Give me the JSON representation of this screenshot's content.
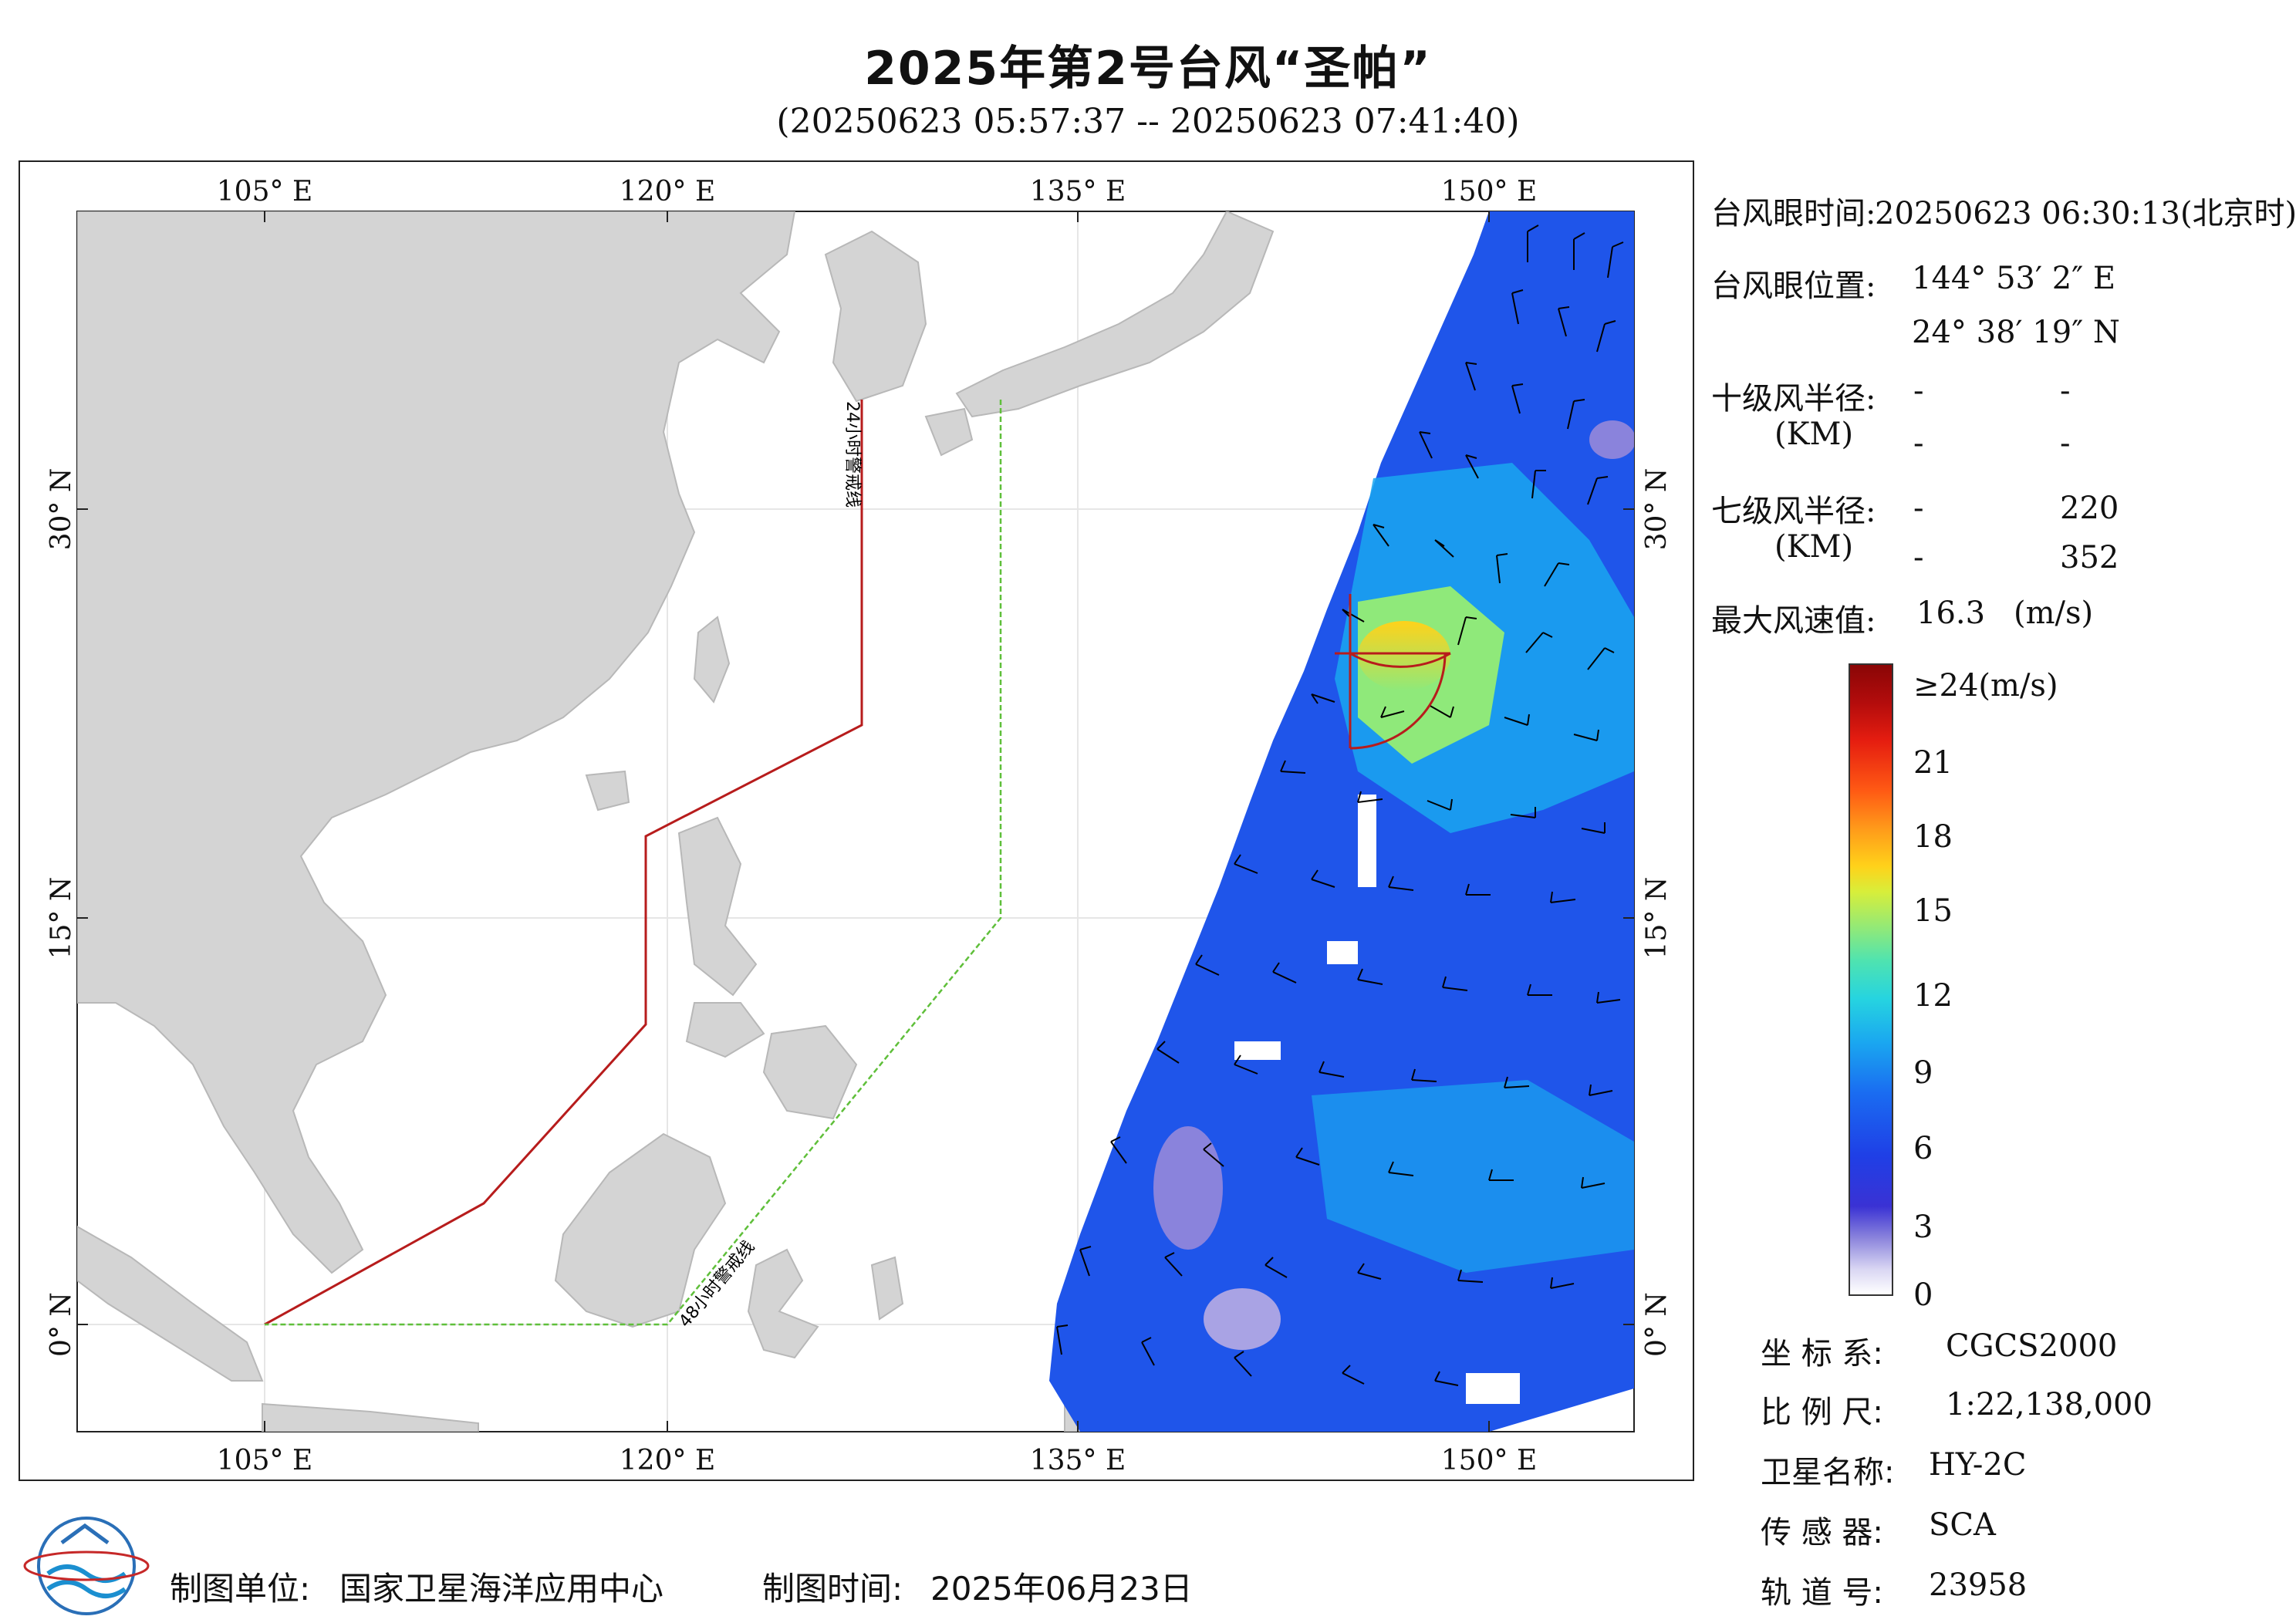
{
  "title": "2025年第2号台风“圣帕”",
  "subtitle": "(20250623 05:57:37 -- 20250623 07:41:40)",
  "map": {
    "top_lon_labels": [
      "105° E",
      "120° E",
      "135° E",
      "150° E"
    ],
    "bottom_lon_labels": [
      "105° E",
      "120° E",
      "135° E",
      "150° E"
    ],
    "left_lat_labels": [
      "30° N",
      "15° N",
      "0° N"
    ],
    "right_lat_labels": [
      "30° N",
      "15° N",
      "0° N"
    ],
    "line_24h_label": "24小时警戒线",
    "line_48h_label": "48小时警戒线",
    "colors": {
      "land": "#d4d4d4",
      "ocean": "#ffffff",
      "line_24h": "#b71c1c",
      "line_48h": "#5fbf3a",
      "grid": "#e6e6e6"
    }
  },
  "info": {
    "eye_time_label": "台风眼时间:",
    "eye_time_value": "20250623 06:30:13(北京时)",
    "eye_pos_label": "台风眼位置:",
    "eye_lon": "144° 53′ 2″ E",
    "eye_lat": "24° 38′ 19″ N",
    "r10_label": "十级风半径:",
    "r10_unit": "(KM)",
    "r10_values": [
      "-",
      "-",
      "-",
      "-"
    ],
    "r7_label": "七级风半径:",
    "r7_unit": "(KM)",
    "r7_values": [
      "-",
      "220",
      "-",
      "352"
    ],
    "max_wind_label": "最大风速值:",
    "max_wind_value": "16.3",
    "max_wind_unit": "(m/s)"
  },
  "colorbar": {
    "ticks": [
      "≥24(m/s)",
      "21",
      "18",
      "15",
      "12",
      "9",
      "6",
      "3",
      "0"
    ]
  },
  "meta": {
    "crs_label": "坐 标 系:",
    "crs_value": "CGCS2000",
    "scale_label": "比 例 尺:",
    "scale_value": "1:22,138,000",
    "sat_label": "卫星名称:",
    "sat_value": "HY-2C",
    "sensor_label": "传 感 器:",
    "sensor_value": "SCA",
    "orbit_label": "轨 道 号:",
    "orbit_value": "23958"
  },
  "footer": {
    "maker_label": "制图单位:",
    "maker_value": "国家卫星海洋应用中心",
    "date_label": "制图时间:",
    "date_value": "2025年06月23日"
  }
}
